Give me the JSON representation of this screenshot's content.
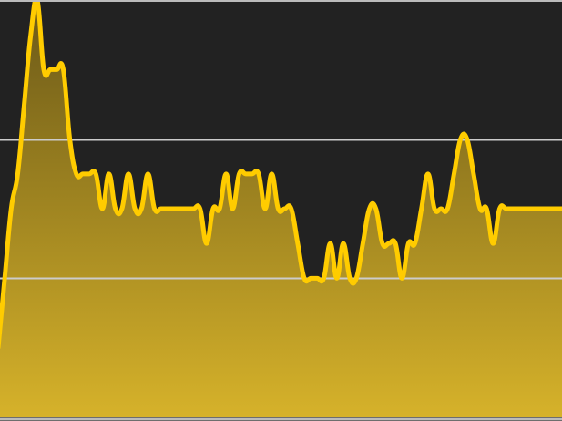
{
  "colors": {
    "background": "#222222",
    "line": "#FFCC00",
    "fill_top": "#6A5818",
    "fill_bottom": "#D6B22A",
    "gridline": "#CCCCCC",
    "border": "#BBBBBB"
  },
  "chart_data": {
    "type": "area",
    "title": "",
    "xlabel": "",
    "ylabel": "",
    "grid": true,
    "gridline_values": [
      2,
      4
    ],
    "ylim": [
      0,
      6
    ],
    "xlim": [
      0,
      87
    ],
    "series": [
      {
        "values": [
          1,
          2,
          3,
          3.5,
          4.5,
          5.5,
          6,
          5,
          5,
          5,
          5,
          4,
          3.5,
          3.5,
          3.5,
          3.5,
          3,
          3.5,
          3,
          3,
          3.5,
          3,
          3,
          3.5,
          3,
          3,
          3,
          3,
          3,
          3,
          3,
          3,
          2.5,
          3,
          3,
          3.5,
          3,
          3.5,
          3.5,
          3.5,
          3.5,
          3,
          3.5,
          3,
          3,
          3,
          2.5,
          2,
          2,
          2,
          2,
          2.5,
          2,
          2.5,
          2,
          2,
          2.5,
          3,
          3,
          2.5,
          2.5,
          2.5,
          2,
          2.5,
          2.5,
          3,
          3.5,
          3,
          3,
          3,
          3.5,
          4,
          4,
          3.5,
          3,
          3,
          2.5,
          3,
          3,
          3,
          3,
          3,
          3,
          3,
          3,
          3,
          3,
          3
        ]
      }
    ]
  }
}
